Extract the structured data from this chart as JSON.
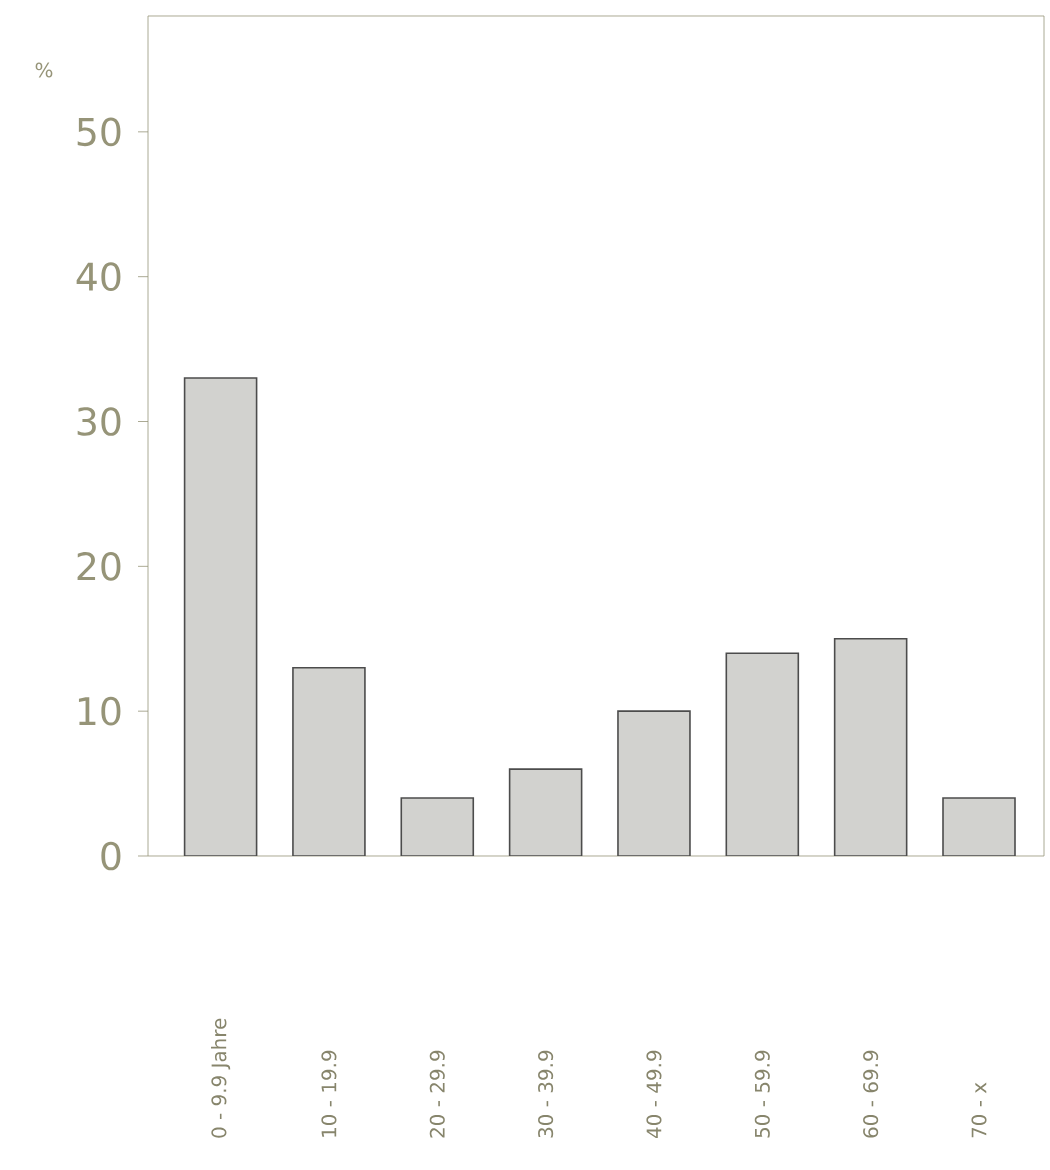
{
  "chart_data": {
    "type": "bar",
    "ylabel": "%",
    "categories": [
      "0 - 9.9 Jahre",
      "10 - 19.9",
      "20 - 29.9",
      "30 - 39.9",
      "40 - 49.9",
      "50 - 59.9",
      "60 - 69.9",
      "70 - x"
    ],
    "values": [
      33,
      13,
      4,
      6,
      10,
      14,
      15,
      4
    ],
    "color": "#d2d2cf",
    "ylim": [
      0,
      58
    ],
    "yticks": [
      0,
      10,
      20,
      30,
      40,
      50
    ]
  }
}
